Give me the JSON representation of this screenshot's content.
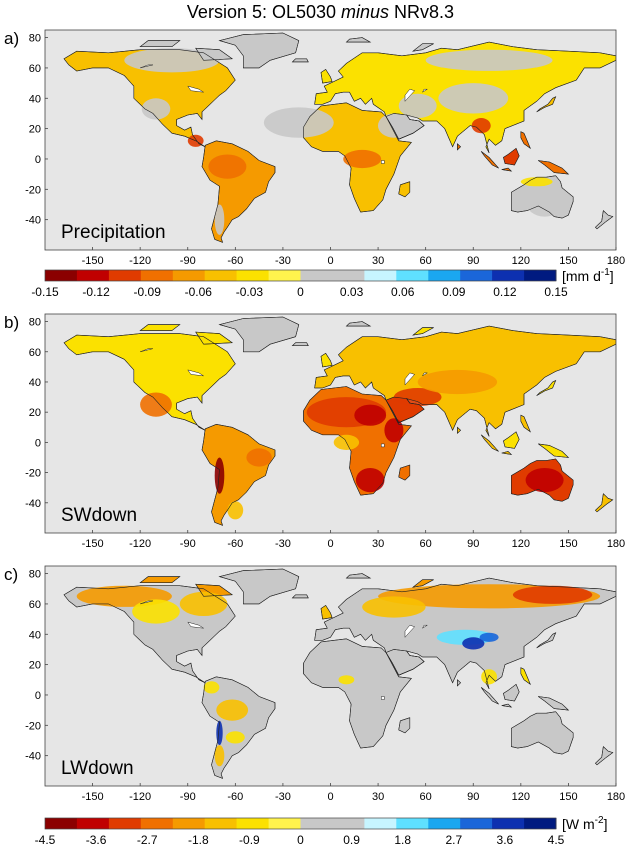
{
  "figure": {
    "title_prefix": "Version 5: OL5030 ",
    "title_italic": "minus",
    "title_suffix": " NRv8.3"
  },
  "colors": {
    "ocean": "#ffffff",
    "land_zero": "#c8c8c8",
    "plot_bg": "#e6e6e6",
    "negative_ramp": [
      "#8b0000",
      "#c00000",
      "#e03b00",
      "#f07000",
      "#f59a00",
      "#f8c000",
      "#fbe100",
      "#fff34d"
    ],
    "positive_ramp": [
      "#c7f5ff",
      "#5fe0ff",
      "#1aa7f0",
      "#1a66d9",
      "#0d30b0",
      "#001a80"
    ]
  },
  "chart_data": [
    {
      "type": "heatmap",
      "panel_label": "a)",
      "variable_label": "Precipitation",
      "xlim": [
        -180,
        180
      ],
      "ylim": [
        -60,
        85
      ],
      "x_ticks": [
        "-150",
        "-120",
        "-90",
        "-60",
        "-30",
        "0",
        "30",
        "60",
        "90",
        "120",
        "150",
        "180"
      ],
      "y_ticks": [
        "80",
        "60",
        "40",
        "20",
        "0",
        "-20",
        "-40"
      ],
      "colorbar": {
        "ticks": [
          "-0.15",
          "-0.12",
          "-0.09",
          "-0.06",
          "-0.03",
          "0",
          "0.03",
          "0.06",
          "0.09",
          "0.12",
          "0.15"
        ],
        "unit_prefix": "[mm d",
        "unit_sup": "-1",
        "unit_suffix": "]",
        "range": [
          -0.15,
          0.15
        ]
      }
    },
    {
      "type": "heatmap",
      "panel_label": "b)",
      "variable_label": "SWdown",
      "xlim": [
        -180,
        180
      ],
      "ylim": [
        -60,
        85
      ],
      "x_ticks": [
        "-150",
        "-120",
        "-90",
        "-60",
        "-30",
        "0",
        "30",
        "60",
        "90",
        "120",
        "150",
        "180"
      ],
      "y_ticks": [
        "80",
        "60",
        "40",
        "20",
        "0",
        "-20",
        "-40"
      ]
    },
    {
      "type": "heatmap",
      "panel_label": "c)",
      "variable_label": "LWdown",
      "xlim": [
        -180,
        180
      ],
      "ylim": [
        -60,
        85
      ],
      "x_ticks": [
        "-150",
        "-120",
        "-90",
        "-60",
        "-30",
        "0",
        "30",
        "60",
        "90",
        "120",
        "150",
        "180"
      ],
      "y_ticks": [
        "80",
        "60",
        "40",
        "20",
        "0",
        "-20",
        "-40"
      ],
      "colorbar": {
        "ticks": [
          "-4.5",
          "-3.6",
          "-2.7",
          "-1.8",
          "-0.9",
          "0",
          "0.9",
          "1.8",
          "2.7",
          "3.6",
          "4.5"
        ],
        "unit_prefix": "[W m",
        "unit_sup": "-2",
        "unit_suffix": "]",
        "range": [
          -4.5,
          4.5
        ]
      }
    }
  ]
}
